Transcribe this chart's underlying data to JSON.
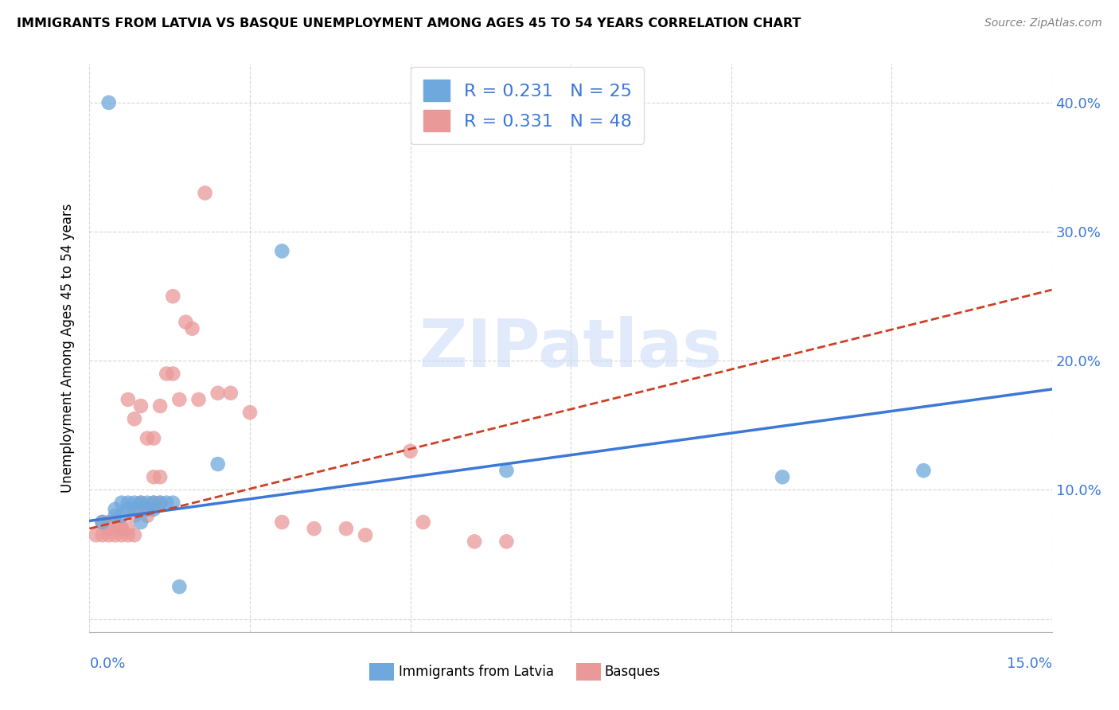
{
  "title": "IMMIGRANTS FROM LATVIA VS BASQUE UNEMPLOYMENT AMONG AGES 45 TO 54 YEARS CORRELATION CHART",
  "source": "Source: ZipAtlas.com",
  "ylabel": "Unemployment Among Ages 45 to 54 years",
  "xlim": [
    0.0,
    0.15
  ],
  "ylim": [
    -0.01,
    0.43
  ],
  "blue_color": "#6fa8dc",
  "pink_color": "#ea9999",
  "blue_line_color": "#3c78d8",
  "pink_line_color": "#cc4125",
  "R_blue": 0.231,
  "N_blue": 25,
  "R_pink": 0.331,
  "N_pink": 48,
  "watermark": "ZIPatlas",
  "blue_points_x": [
    0.002,
    0.003,
    0.004,
    0.004,
    0.005,
    0.005,
    0.006,
    0.006,
    0.007,
    0.007,
    0.008,
    0.008,
    0.009,
    0.009,
    0.01,
    0.01,
    0.011,
    0.012,
    0.013,
    0.014,
    0.02,
    0.03,
    0.065,
    0.108,
    0.13
  ],
  "blue_points_y": [
    0.075,
    0.4,
    0.08,
    0.085,
    0.08,
    0.09,
    0.085,
    0.09,
    0.085,
    0.09,
    0.075,
    0.09,
    0.085,
    0.09,
    0.085,
    0.09,
    0.09,
    0.09,
    0.09,
    0.025,
    0.12,
    0.285,
    0.115,
    0.11,
    0.115
  ],
  "pink_points_x": [
    0.001,
    0.002,
    0.003,
    0.003,
    0.004,
    0.005,
    0.005,
    0.006,
    0.006,
    0.007,
    0.007,
    0.008,
    0.008,
    0.009,
    0.009,
    0.01,
    0.01,
    0.011,
    0.011,
    0.012,
    0.013,
    0.013,
    0.014,
    0.015,
    0.016,
    0.017,
    0.018,
    0.02,
    0.022,
    0.025,
    0.03,
    0.035,
    0.04,
    0.043,
    0.05,
    0.052,
    0.06,
    0.065,
    0.002,
    0.003,
    0.004,
    0.005,
    0.006,
    0.007,
    0.008,
    0.009,
    0.01,
    0.011
  ],
  "pink_points_y": [
    0.065,
    0.065,
    0.07,
    0.065,
    0.065,
    0.07,
    0.065,
    0.17,
    0.065,
    0.065,
    0.155,
    0.165,
    0.09,
    0.14,
    0.08,
    0.14,
    0.11,
    0.11,
    0.165,
    0.19,
    0.19,
    0.25,
    0.17,
    0.23,
    0.225,
    0.17,
    0.33,
    0.175,
    0.175,
    0.16,
    0.075,
    0.07,
    0.07,
    0.065,
    0.13,
    0.075,
    0.06,
    0.06,
    0.075,
    0.075,
    0.075,
    0.07,
    0.07,
    0.08,
    0.085,
    0.085,
    0.09,
    0.09
  ]
}
